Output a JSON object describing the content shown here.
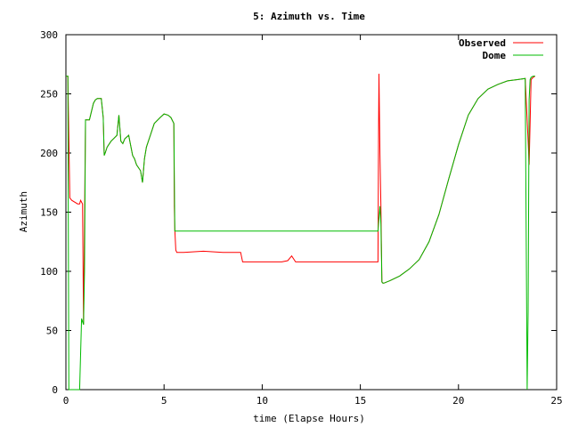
{
  "chart_data": {
    "type": "line",
    "title": "5: Azimuth vs. Time",
    "xlabel": "time (Elapse Hours)",
    "ylabel": "Azimuth",
    "xlim": [
      0,
      25
    ],
    "ylim": [
      0,
      300
    ],
    "x_ticks": [
      "0",
      "5",
      "10",
      "15",
      "20",
      "25"
    ],
    "y_ticks": [
      "0",
      "50",
      "100",
      "150",
      "200",
      "250",
      "300"
    ],
    "grid": false,
    "legend_position": "top-right",
    "series": [
      {
        "name": "Observed",
        "color": "#ff0000",
        "x": [
          0,
          0.05,
          0.1,
          0.15,
          0.2,
          0.3,
          0.6,
          0.7,
          0.75,
          0.85,
          0.9,
          1.0,
          1.2,
          1.4,
          1.5,
          1.6,
          1.8,
          1.9,
          1.95,
          2.0,
          2.1,
          2.3,
          2.6,
          2.7,
          2.8,
          2.9,
          3.0,
          3.2,
          3.4,
          3.5,
          3.6,
          3.8,
          3.9,
          4.0,
          4.1,
          4.3,
          4.5,
          4.8,
          5.0,
          5.2,
          5.35,
          5.5,
          5.52,
          5.55,
          5.6,
          5.65,
          5.7,
          6.0,
          7.0,
          8.0,
          8.9,
          9.0,
          10.0,
          11.0,
          11.3,
          11.5,
          11.7,
          12.0,
          13.0,
          14.0,
          15.0,
          15.8,
          15.9,
          15.93,
          15.95,
          16.0,
          16.05,
          16.1,
          16.15,
          16.2,
          16.5,
          17.0,
          17.5,
          18.0,
          18.5,
          19.0,
          19.5,
          20.0,
          20.5,
          21.0,
          21.5,
          22.0,
          22.5,
          23.0,
          23.4,
          23.55,
          23.6,
          23.65,
          23.7,
          23.8,
          23.9
        ],
        "values": [
          265,
          265,
          265,
          212,
          162,
          160,
          157,
          157,
          160,
          157,
          55,
          228,
          228,
          242,
          245,
          246,
          246,
          230,
          198,
          200,
          205,
          210,
          215,
          232,
          210,
          208,
          212,
          215,
          198,
          195,
          190,
          185,
          175,
          195,
          205,
          215,
          225,
          230,
          233,
          232,
          230,
          225,
          155,
          135,
          118,
          116,
          116,
          116,
          117,
          116,
          116,
          108,
          108,
          108,
          109,
          113,
          108,
          108,
          108,
          108,
          108,
          108,
          108,
          225,
          267,
          200,
          155,
          91,
          90,
          90,
          92,
          96,
          102,
          110,
          125,
          148,
          178,
          207,
          232,
          246,
          254,
          258,
          261,
          262,
          263,
          210,
          190,
          225,
          262,
          264,
          265
        ]
      },
      {
        "name": "Dome",
        "color": "#00bb00",
        "x": [
          0,
          0.05,
          0.1,
          0.15,
          0.2,
          0.25,
          0.6,
          0.7,
          0.8,
          0.9,
          0.95,
          1.0,
          1.2,
          1.4,
          1.5,
          1.6,
          1.8,
          1.9,
          1.95,
          2.0,
          2.1,
          2.3,
          2.6,
          2.7,
          2.8,
          2.9,
          3.0,
          3.2,
          3.4,
          3.5,
          3.6,
          3.8,
          3.9,
          4.0,
          4.1,
          4.3,
          4.5,
          4.8,
          5.0,
          5.2,
          5.35,
          5.5,
          5.55,
          5.6,
          5.65,
          6.0,
          8.0,
          10.0,
          12.0,
          14.0,
          15.9,
          16.0,
          16.05,
          16.1,
          16.15,
          16.2,
          16.5,
          17.0,
          17.5,
          18.0,
          18.5,
          19.0,
          19.5,
          20.0,
          20.5,
          21.0,
          21.5,
          22.0,
          22.5,
          23.0,
          23.4,
          23.5,
          23.55,
          23.6,
          23.65,
          23.7,
          23.8,
          23.9
        ],
        "values": [
          265,
          265,
          265,
          0,
          0,
          0,
          0,
          0,
          60,
          55,
          100,
          228,
          228,
          242,
          245,
          246,
          246,
          230,
          198,
          200,
          205,
          210,
          215,
          232,
          210,
          208,
          212,
          215,
          198,
          195,
          190,
          185,
          175,
          195,
          205,
          215,
          225,
          230,
          233,
          232,
          230,
          225,
          134,
          134,
          134,
          134,
          134,
          134,
          134,
          134,
          134,
          155,
          140,
          91,
          90,
          90,
          92,
          96,
          102,
          110,
          125,
          148,
          178,
          207,
          232,
          246,
          254,
          258,
          261,
          262,
          263,
          0,
          66,
          245,
          262,
          264,
          265,
          265
        ]
      }
    ]
  }
}
